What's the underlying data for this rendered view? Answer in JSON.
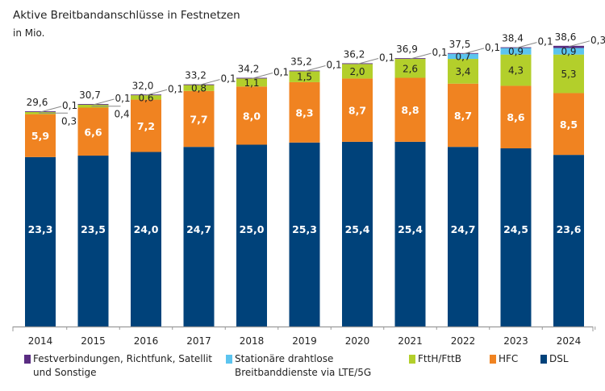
{
  "chart_data": {
    "type": "bar",
    "stacked": true,
    "title": "Aktive Breitbandanschlüsse in Festnetzen",
    "subtitle": "in Mio.",
    "categories": [
      "2014",
      "2015",
      "2016",
      "2017",
      "2018",
      "2019",
      "2020",
      "2021",
      "2022",
      "2023",
      "2024"
    ],
    "ylim": [
      0,
      44
    ],
    "grid": false,
    "legend_position": "bottom",
    "series": [
      {
        "name": "DSL",
        "color": "#00427a",
        "values": [
          23.3,
          23.5,
          24.0,
          24.7,
          25.0,
          25.3,
          25.4,
          25.4,
          24.7,
          24.5,
          23.6
        ],
        "labels": [
          "23,3",
          "23,5",
          "24,0",
          "24,7",
          "25,0",
          "25,3",
          "25,4",
          "25,4",
          "24,7",
          "24,5",
          "23,6"
        ]
      },
      {
        "name": "HFC",
        "color": "#f08321",
        "values": [
          5.9,
          6.6,
          7.2,
          7.7,
          8.0,
          8.3,
          8.7,
          8.8,
          8.7,
          8.6,
          8.5
        ],
        "labels": [
          "5,9",
          "6,6",
          "7,2",
          "7,7",
          "8,0",
          "8,3",
          "8,7",
          "8,8",
          "8,7",
          "8,6",
          "8,5"
        ]
      },
      {
        "name": "FttH/FttB",
        "color": "#b3cf2b",
        "values": [
          0.3,
          0.4,
          0.6,
          0.8,
          1.1,
          1.5,
          2.0,
          2.6,
          3.4,
          4.3,
          5.3
        ],
        "labels": [
          "0,3",
          "0,4",
          "0,6",
          "0,8",
          "1,1",
          "1,5",
          "2,0",
          "2,6",
          "3,4",
          "4,3",
          "5,3"
        ]
      },
      {
        "name": "Stationäre drahtlose Breitbanddienste via LTE/5G",
        "color": "#5cc4ef",
        "values": [
          0,
          0,
          0,
          0,
          0,
          0,
          0,
          0,
          0.7,
          0.9,
          0.9
        ],
        "labels": [
          "",
          "",
          "",
          "",
          "",
          "",
          "",
          "",
          "0,7",
          "0,9",
          "0,9"
        ]
      },
      {
        "name": "Festverbindungen, Richtfunk, Satellit und Sonstige",
        "color": "#5a2d82",
        "values": [
          0.1,
          0.1,
          0.1,
          0.1,
          0.1,
          0.1,
          0.1,
          0.1,
          0.1,
          0.1,
          0.3
        ],
        "labels": [
          "0,1",
          "0,1",
          "0,1",
          "0,1",
          "0,1",
          "0,1",
          "0,1",
          "0,1",
          "0,1",
          "0,1",
          "0,3"
        ]
      }
    ],
    "totals": [
      29.6,
      30.7,
      32.0,
      33.2,
      34.2,
      35.2,
      36.2,
      36.9,
      37.5,
      38.4,
      38.6
    ],
    "total_labels": [
      "29,6",
      "30,7",
      "32,0",
      "33,2",
      "34,2",
      "35,2",
      "36,2",
      "36,9",
      "37,5",
      "38,4",
      "38,6"
    ]
  },
  "legend": [
    {
      "line1": "Festverbindungen, Richtfunk, Satellit",
      "line2": "und Sonstige",
      "color": "#5a2d82"
    },
    {
      "line1": "Stationäre drahtlose",
      "line2": "Breitbanddienste via LTE/5G",
      "color": "#5cc4ef"
    },
    {
      "line1": "FttH/FttB",
      "line2": "",
      "color": "#b3cf2b"
    },
    {
      "line1": "HFC",
      "line2": "",
      "color": "#f08321"
    },
    {
      "line1": "DSL",
      "line2": "",
      "color": "#00427a"
    }
  ]
}
